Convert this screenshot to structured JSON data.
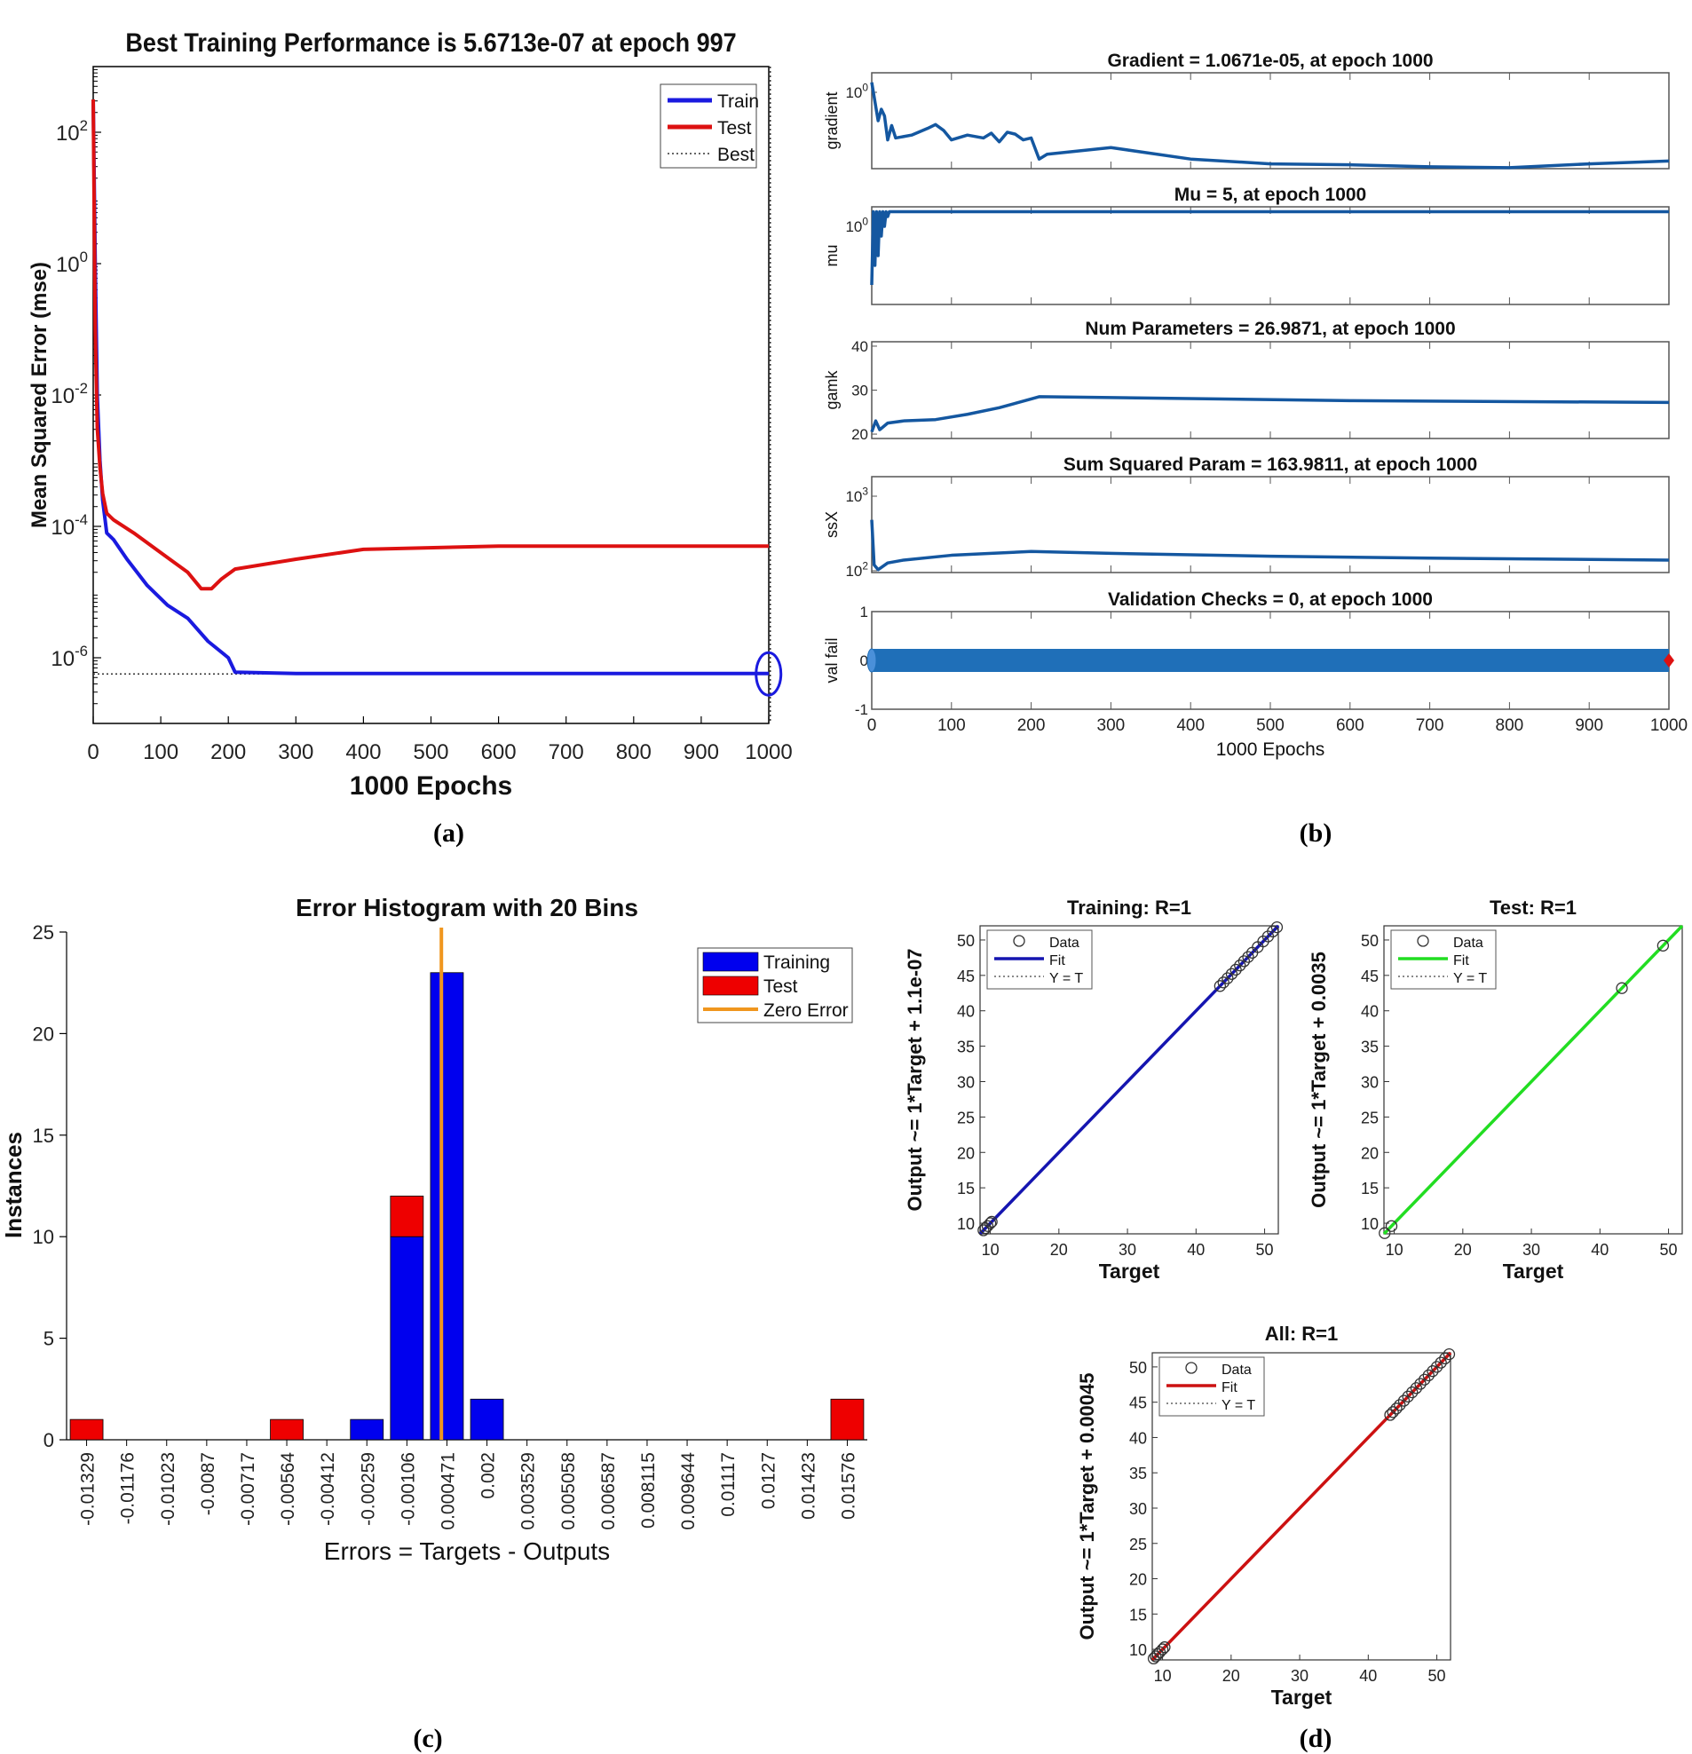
{
  "chart_data": [
    {
      "id": "a",
      "type": "line",
      "panel_label": "(a)",
      "title": "Best Training Performance is 5.6713e-07 at epoch 997",
      "xlabel": "1000 Epochs",
      "ylabel": "Mean Squared Error  (mse)",
      "yscale": "log",
      "xlim": [
        0,
        1000
      ],
      "ylim_exp": [
        -7,
        3
      ],
      "xticks": [
        "0",
        "100",
        "200",
        "300",
        "400",
        "500",
        "600",
        "700",
        "800",
        "900",
        "1000"
      ],
      "yticks": [
        {
          "base": "10",
          "exp": "2",
          "v": 2
        },
        {
          "base": "10",
          "exp": "0",
          "v": 0
        },
        {
          "base": "10",
          "exp": "-2",
          "v": -2
        },
        {
          "base": "10",
          "exp": "-4",
          "v": -4
        },
        {
          "base": "10",
          "exp": "-6",
          "v": -6
        }
      ],
      "legend": [
        "Train",
        "Test",
        "Best"
      ],
      "best": {
        "epoch": 997,
        "value_exp": -6.246
      },
      "series": [
        {
          "name": "Train",
          "color": "#1a1adf",
          "x": [
            0,
            3,
            6,
            10,
            14,
            20,
            30,
            50,
            80,
            110,
            140,
            170,
            200,
            210,
            300,
            500,
            700,
            1000
          ],
          "log10": [
            2.5,
            0.0,
            -2.0,
            -3.0,
            -3.6,
            -4.1,
            -4.2,
            -4.5,
            -4.9,
            -5.2,
            -5.4,
            -5.75,
            -6.0,
            -6.22,
            -6.24,
            -6.24,
            -6.24,
            -6.24
          ]
        },
        {
          "name": "Test",
          "color": "#dd1111",
          "x": [
            0,
            3,
            6,
            10,
            14,
            20,
            30,
            60,
            100,
            140,
            160,
            175,
            190,
            210,
            300,
            400,
            600,
            800,
            1000
          ],
          "log10": [
            2.5,
            -1.0,
            -2.5,
            -3.1,
            -3.5,
            -3.8,
            -3.9,
            -4.1,
            -4.4,
            -4.7,
            -4.95,
            -4.95,
            -4.8,
            -4.65,
            -4.5,
            -4.35,
            -4.3,
            -4.3,
            -4.3
          ]
        }
      ]
    },
    {
      "id": "b",
      "type": "line",
      "panel_label": "(b)",
      "xlabel": "1000 Epochs",
      "xlim": [
        0,
        1000
      ],
      "xticks": [
        "0",
        "100",
        "200",
        "300",
        "400",
        "500",
        "600",
        "700",
        "800",
        "900",
        "1000"
      ],
      "subplots": [
        {
          "title": "Gradient = 1.0671e-05, at epoch 1000",
          "ylabel": "gradient",
          "ytick_labels": [
            {
              "base": "10",
              "exp": "0"
            }
          ],
          "x": [
            0,
            8,
            12,
            16,
            20,
            25,
            30,
            50,
            70,
            80,
            90,
            100,
            120,
            140,
            150,
            160,
            170,
            180,
            190,
            200,
            210,
            220,
            300,
            400,
            500,
            600,
            700,
            800,
            900,
            1000
          ],
          "y": [
            0.9,
            0.5,
            0.62,
            0.55,
            0.3,
            0.45,
            0.32,
            0.35,
            0.42,
            0.46,
            0.4,
            0.3,
            0.35,
            0.32,
            0.37,
            0.28,
            0.38,
            0.36,
            0.3,
            0.32,
            0.1,
            0.15,
            0.22,
            0.1,
            0.05,
            0.04,
            0.02,
            0.01,
            0.05,
            0.08
          ]
        },
        {
          "title": "Mu = 5, at epoch 1000",
          "ylabel": "mu",
          "ytick_labels": [
            {
              "base": "10",
              "exp": "0"
            }
          ],
          "x": [
            0,
            2,
            4,
            6,
            8,
            10,
            12,
            14,
            16,
            18,
            20,
            22,
            25,
            1000
          ],
          "y": [
            0.2,
            0.95,
            0.4,
            0.95,
            0.5,
            0.95,
            0.7,
            0.95,
            0.8,
            0.95,
            0.9,
            0.95,
            0.95,
            0.95
          ]
        },
        {
          "title": "Num Parameters = 26.9871, at epoch 1000",
          "ylabel": "gamk",
          "ytick_labels": [
            {
              "text": "40",
              "v": 40
            },
            {
              "text": "30",
              "v": 30
            },
            {
              "text": "20",
              "v": 20
            }
          ],
          "ylim": [
            19,
            41
          ],
          "x": [
            0,
            5,
            10,
            20,
            40,
            80,
            120,
            160,
            200,
            210,
            300,
            600,
            1000
          ],
          "y": [
            20.5,
            23,
            21,
            22.5,
            23,
            23.3,
            24.5,
            26,
            28,
            28.5,
            28.3,
            27.6,
            27.2
          ]
        },
        {
          "title": "Sum Squared Param = 163.9811, at epoch 1000",
          "ylabel": "ssX",
          "ytick_labels": [
            {
              "base": "10",
              "exp": "3"
            },
            {
              "base": "10",
              "exp": "2"
            }
          ],
          "x": [
            0,
            3,
            8,
            20,
            40,
            100,
            150,
            200,
            300,
            500,
            700,
            1000
          ],
          "y": [
            0.55,
            0.08,
            0.03,
            0.1,
            0.13,
            0.18,
            0.2,
            0.22,
            0.2,
            0.17,
            0.15,
            0.13
          ]
        },
        {
          "title": "Validation Checks = 0, at epoch 1000",
          "ylabel": "val fail",
          "ytick_labels": [
            {
              "text": "1",
              "v": 1
            },
            {
              "text": "0",
              "v": 0
            },
            {
              "text": "-1",
              "v": -1
            }
          ],
          "ylim": [
            -1,
            1
          ],
          "x": [
            0,
            1000
          ],
          "y": [
            0,
            0
          ]
        }
      ]
    },
    {
      "id": "c",
      "type": "bar",
      "panel_label": "(c)",
      "title": "Error Histogram with 20 Bins",
      "xlabel": "Errors = Targets - Outputs",
      "ylabel": "Instances",
      "ylim": [
        0,
        25
      ],
      "yticks": [
        "0",
        "5",
        "10",
        "15",
        "20",
        "25"
      ],
      "categories": [
        "-0.01329",
        "-0.01176",
        "-0.01023",
        "-0.0087",
        "-0.00717",
        "-0.00564",
        "-0.00412",
        "-0.00259",
        "-0.00106",
        "0.000471",
        "0.002",
        "0.003529",
        "0.005058",
        "0.006587",
        "0.008115",
        "0.009644",
        "0.01117",
        "0.0127",
        "0.01423",
        "0.01576"
      ],
      "series": [
        {
          "name": "Training",
          "color": "#0000ee",
          "values": [
            0,
            0,
            0,
            0,
            0,
            0,
            0,
            1,
            10,
            23,
            2,
            0,
            0,
            0,
            0,
            0,
            0,
            0,
            0,
            0
          ]
        },
        {
          "name": "Test",
          "color": "#ee0000",
          "values": [
            1,
            0,
            0,
            0,
            0,
            1,
            0,
            0,
            2,
            0,
            0,
            0,
            0,
            0,
            0,
            0,
            0,
            0,
            0,
            2
          ]
        }
      ],
      "zero_error": {
        "name": "Zero Error",
        "color": "#f0961e",
        "position": 0.000259
      }
    },
    {
      "id": "d",
      "type": "scatter",
      "panel_label": "(d)",
      "subplots": [
        {
          "title": "Training: R=1",
          "xlabel": "Target",
          "ylabel": "Output ~= 1*Target + 1.1e-07",
          "fit_color": "#1515b0",
          "legend": [
            "Data",
            "Fit",
            "Y = T"
          ],
          "xlim": [
            8.5,
            52
          ],
          "ylim": [
            8.5,
            52
          ],
          "xticks": [
            "10",
            "20",
            "30",
            "40",
            "50"
          ],
          "yticks": [
            "10",
            "15",
            "20",
            "25",
            "30",
            "35",
            "40",
            "45",
            "50"
          ],
          "points": [
            9,
            9.3,
            9.6,
            10,
            10.2,
            43.5,
            44,
            44.6,
            45.2,
            45.8,
            46.4,
            47,
            47.6,
            48.2,
            49,
            49.8,
            50.5,
            51.2,
            51.8
          ]
        },
        {
          "title": "Test: R=1",
          "xlabel": "Target",
          "ylabel": "Output ~= 1*Target + 0.0035",
          "fit_color": "#22dd22",
          "legend": [
            "Data",
            "Fit",
            "Y = T"
          ],
          "xlim": [
            8.5,
            52
          ],
          "ylim": [
            8.5,
            52
          ],
          "xticks": [
            "10",
            "20",
            "30",
            "40",
            "50"
          ],
          "yticks": [
            "10",
            "15",
            "20",
            "25",
            "30",
            "35",
            "40",
            "45",
            "50"
          ],
          "points": [
            8.6,
            9.6,
            43.2,
            49.2
          ]
        },
        {
          "title": "All: R=1",
          "xlabel": "Target",
          "ylabel": "Output ~= 1*Target + 0.00045",
          "fit_color": "#cc1111",
          "legend": [
            "Data",
            "Fit",
            "Y = T"
          ],
          "xlim": [
            8.5,
            52
          ],
          "ylim": [
            8.5,
            52
          ],
          "xticks": [
            "10",
            "20",
            "30",
            "40",
            "50"
          ],
          "yticks": [
            "10",
            "15",
            "20",
            "25",
            "30",
            "35",
            "40",
            "45",
            "50"
          ],
          "points": [
            8.7,
            9,
            9.3,
            9.6,
            10,
            10.3,
            43.2,
            43.6,
            44.1,
            44.6,
            45.2,
            45.8,
            46.4,
            47,
            47.6,
            48.2,
            48.8,
            49.4,
            50,
            50.6,
            51.2,
            51.8
          ]
        }
      ]
    }
  ]
}
